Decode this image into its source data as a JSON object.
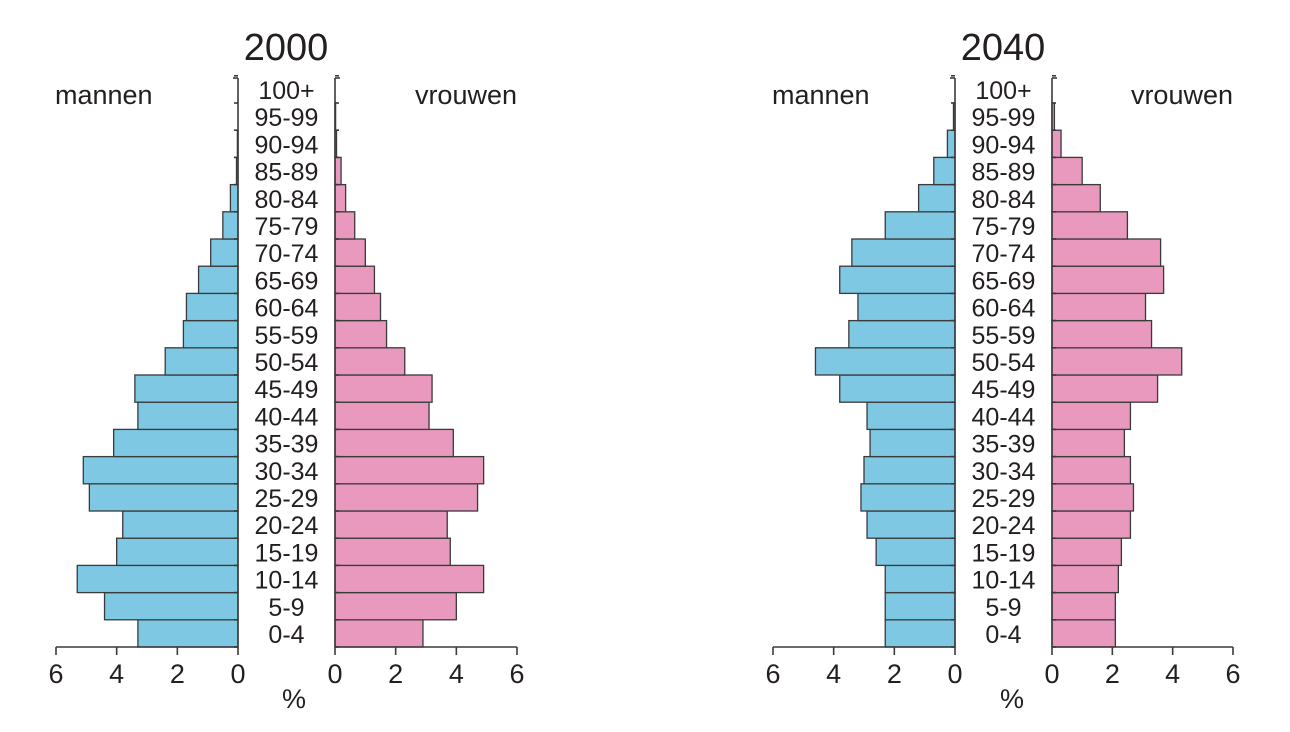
{
  "chart_data": [
    {
      "type": "bar",
      "orientation": "horizontal",
      "title": "2000",
      "left_label": "mannen",
      "right_label": "vrouwen",
      "unit_label": "%",
      "categories": [
        "0-4",
        "5-9",
        "10-14",
        "15-19",
        "20-24",
        "25-29",
        "30-34",
        "35-39",
        "40-44",
        "45-49",
        "50-54",
        "55-59",
        "60-64",
        "65-69",
        "70-74",
        "75-79",
        "80-84",
        "85-89",
        "90-94",
        "95-99",
        "100+"
      ],
      "series": [
        {
          "name": "mannen",
          "values": [
            3.3,
            4.4,
            5.3,
            4.0,
            3.8,
            4.9,
            5.1,
            4.1,
            3.3,
            3.4,
            2.4,
            1.8,
            1.7,
            1.3,
            0.9,
            0.5,
            0.25,
            0.05,
            0.02,
            0.0,
            0.0
          ]
        },
        {
          "name": "vrouwen",
          "values": [
            2.9,
            4.0,
            4.9,
            3.8,
            3.7,
            4.7,
            4.9,
            3.9,
            3.1,
            3.2,
            2.3,
            1.7,
            1.5,
            1.3,
            1.0,
            0.65,
            0.35,
            0.2,
            0.05,
            0.02,
            0.0
          ]
        }
      ],
      "xlim": [
        0,
        6
      ],
      "xticks": [
        "6",
        "4",
        "2",
        "0",
        "0",
        "2",
        "4",
        "6"
      ],
      "colors": {
        "mannen": "#7ec8e3",
        "vrouwen": "#e899bd"
      }
    },
    {
      "type": "bar",
      "orientation": "horizontal",
      "title": "2040",
      "left_label": "mannen",
      "right_label": "vrouwen",
      "unit_label": "%",
      "categories": [
        "0-4",
        "5-9",
        "10-14",
        "15-19",
        "20-24",
        "25-29",
        "30-34",
        "35-39",
        "40-44",
        "45-49",
        "50-54",
        "55-59",
        "60-64",
        "65-69",
        "70-74",
        "75-79",
        "80-84",
        "85-89",
        "90-94",
        "95-99",
        "100+"
      ],
      "series": [
        {
          "name": "mannen",
          "values": [
            2.3,
            2.3,
            2.3,
            2.6,
            2.9,
            3.1,
            3.0,
            2.8,
            2.9,
            3.8,
            4.6,
            3.5,
            3.2,
            3.8,
            3.4,
            2.3,
            1.2,
            0.7,
            0.25,
            0.05,
            0.0
          ]
        },
        {
          "name": "vrouwen",
          "values": [
            2.1,
            2.1,
            2.2,
            2.3,
            2.6,
            2.7,
            2.6,
            2.4,
            2.6,
            3.5,
            4.3,
            3.3,
            3.1,
            3.7,
            3.6,
            2.5,
            1.6,
            1.0,
            0.3,
            0.08,
            0.0
          ]
        }
      ],
      "xlim": [
        0,
        6
      ],
      "xticks": [
        "6",
        "4",
        "2",
        "0",
        "0",
        "2",
        "4",
        "6"
      ],
      "colors": {
        "mannen": "#7ec8e3",
        "vrouwen": "#e899bd"
      }
    }
  ]
}
